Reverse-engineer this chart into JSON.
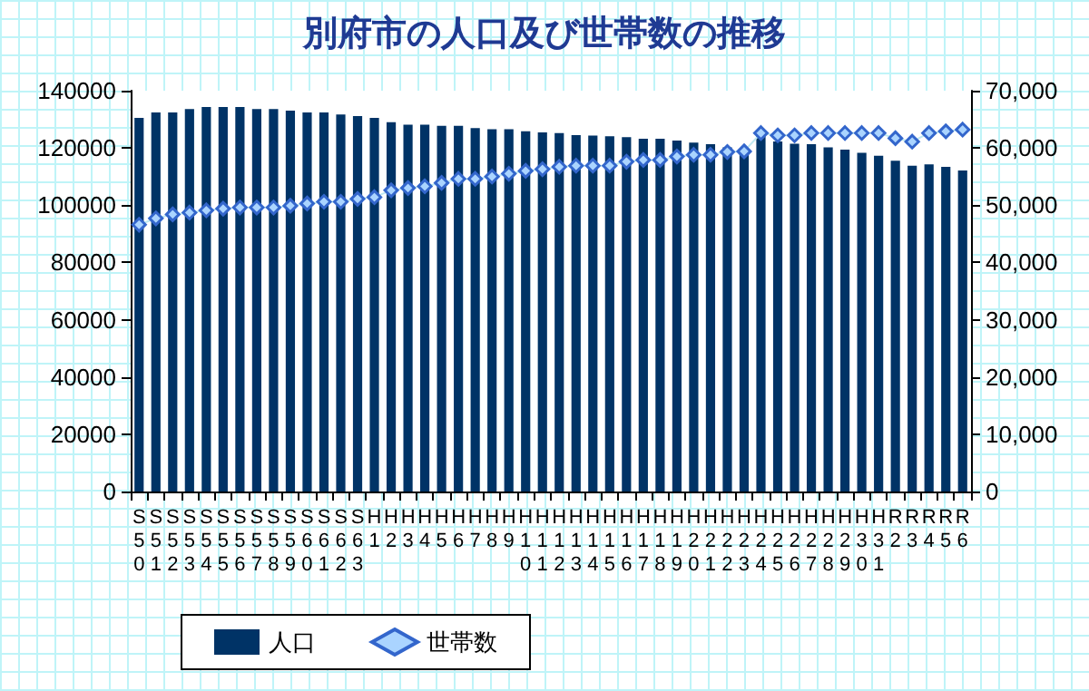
{
  "chart_data": {
    "type": "bar",
    "title": "別府市の人口及び世帯数の推移",
    "categories": [
      "S50",
      "S51",
      "S52",
      "S53",
      "S54",
      "S55",
      "S56",
      "S57",
      "S58",
      "S59",
      "S60",
      "S61",
      "S62",
      "S63",
      "H1",
      "H2",
      "H3",
      "H4",
      "H5",
      "H6",
      "H7",
      "H8",
      "H9",
      "H10",
      "H11",
      "H12",
      "H13",
      "H14",
      "H15",
      "H16",
      "H17",
      "H18",
      "H19",
      "H20",
      "H21",
      "H22",
      "H23",
      "H24",
      "H25",
      "H26",
      "H27",
      "H28",
      "H29",
      "H30",
      "H31",
      "R2",
      "R3",
      "R4",
      "R5",
      "R6"
    ],
    "series": [
      {
        "name": "人口",
        "color": "#003366",
        "values": [
          130500,
          132400,
          132400,
          133600,
          134300,
          134300,
          134300,
          133600,
          133600,
          133000,
          132400,
          132400,
          131700,
          131100,
          130500,
          129000,
          128100,
          128100,
          127700,
          127700,
          126900,
          126500,
          126500,
          125800,
          125400,
          125200,
          124500,
          124300,
          124100,
          123800,
          123200,
          123200,
          122600,
          121900,
          121300,
          120200,
          119800,
          126000,
          122300,
          121500,
          121300,
          120200,
          119400,
          118300,
          117300,
          115500,
          113800,
          114300,
          113400,
          112100
        ]
      },
      {
        "name": "世帯数",
        "type": "line",
        "axis": "y2",
        "color": "#3366cc",
        "marker": "diamond",
        "values": [
          46600,
          47700,
          48400,
          48700,
          49100,
          49400,
          49600,
          49600,
          49600,
          49900,
          50300,
          50600,
          50600,
          51100,
          51400,
          52600,
          53000,
          53300,
          53900,
          54600,
          54600,
          55000,
          55500,
          56000,
          56300,
          56700,
          56900,
          56900,
          56900,
          57600,
          57900,
          57900,
          58500,
          58800,
          58800,
          59300,
          59400,
          62600,
          62200,
          62200,
          62600,
          62600,
          62600,
          62600,
          62600,
          61700,
          61100,
          62600,
          62900,
          63200
        ]
      }
    ],
    "ylim": [
      0,
      140000
    ],
    "yticks": [
      0,
      20000,
      40000,
      60000,
      80000,
      100000,
      120000,
      140000
    ],
    "y2lim": [
      0,
      70000
    ],
    "y2ticks": [
      0,
      {
        "value": 10000,
        "label": "10,000"
      },
      {
        "value": 20000,
        "label": "20,000"
      },
      {
        "value": 30000,
        "label": "30,000"
      },
      {
        "value": 40000,
        "label": "40,000"
      },
      {
        "value": 50000,
        "label": "50,000"
      },
      {
        "value": 60000,
        "label": "60,000"
      },
      {
        "value": 70000,
        "label": "70,000"
      }
    ],
    "grid": false,
    "legend": "bottom left"
  }
}
